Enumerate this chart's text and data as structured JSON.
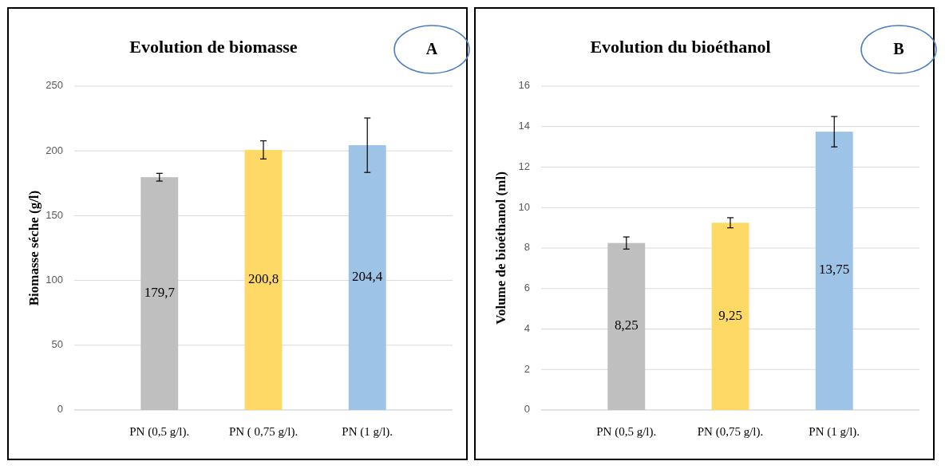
{
  "chart_data": [
    {
      "type": "bar",
      "title": "Evolution de biomasse",
      "ylabel": "Biomasse séche (g/l)",
      "categories": [
        "PN (0,5 g/l).",
        "PN ( 0,75 g/l).",
        "PN (1 g/l)."
      ],
      "values": [
        179.7,
        200.8,
        204.4
      ],
      "colors": [
        "#bfbfbf",
        "#ffd966",
        "#9dc3e6"
      ],
      "errors": [
        3,
        7,
        21
      ],
      "ylim": [
        0,
        250
      ],
      "yticks": [
        0,
        50,
        100,
        150,
        200,
        250
      ],
      "grid": "y",
      "value_labels": [
        "179,7",
        "200,8",
        "204,4"
      ],
      "annotations": [
        "A"
      ]
    },
    {
      "type": "bar",
      "title": "Evolution du bioéthanol",
      "ylabel": "Volume de bioéthanol (ml)",
      "categories": [
        "PN (0,5 g/l).",
        "PN (0,75 g/l).",
        "PN (1 g/l)."
      ],
      "values": [
        8.25,
        9.25,
        13.75
      ],
      "colors": [
        "#bfbfbf",
        "#ffd966",
        "#9dc3e6"
      ],
      "errors": [
        0.3,
        0.25,
        0.75
      ],
      "ylim": [
        0,
        16
      ],
      "yticks": [
        0,
        2,
        4,
        6,
        8,
        10,
        12,
        14,
        16
      ],
      "grid": "y",
      "value_labels": [
        "8,25",
        "9,25",
        "13,75"
      ],
      "annotations": [
        "B"
      ]
    }
  ]
}
